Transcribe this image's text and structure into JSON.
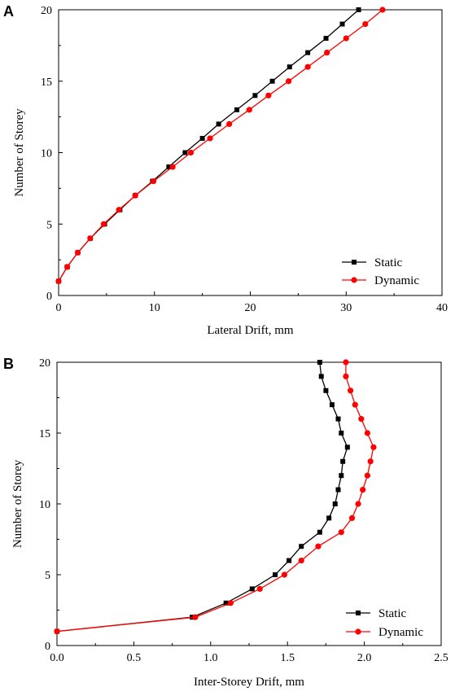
{
  "chart_data": [
    {
      "panel": "A",
      "type": "line",
      "title": "",
      "xlabel": "Lateral Drift, mm",
      "ylabel": "Number of Storey",
      "xlim": [
        0,
        40
      ],
      "ylim": [
        0,
        20
      ],
      "xticks": [
        0,
        10,
        20,
        30,
        40
      ],
      "yticks": [
        0,
        5,
        10,
        15,
        20
      ],
      "legend_position": "bottom-right",
      "grid": false,
      "series": [
        {
          "name": "Static",
          "color": "#000000",
          "marker": "square",
          "x": [
            0,
            0.9,
            2.0,
            3.3,
            4.8,
            6.4,
            8.0,
            9.8,
            11.5,
            13.2,
            15.0,
            16.7,
            18.6,
            20.5,
            22.3,
            24.1,
            26.0,
            27.9,
            29.6,
            31.3
          ],
          "y": [
            1,
            2,
            3,
            4,
            5,
            6,
            7,
            8,
            9,
            10,
            11,
            12,
            13,
            14,
            15,
            16,
            17,
            18,
            19,
            20
          ]
        },
        {
          "name": "Dynamic",
          "color": "#ff0000",
          "marker": "circle",
          "x": [
            0,
            0.9,
            2.0,
            3.3,
            4.7,
            6.3,
            8.0,
            9.9,
            11.9,
            13.8,
            15.8,
            17.8,
            19.9,
            21.9,
            24.0,
            26.0,
            28.0,
            30.0,
            32.0,
            33.8
          ],
          "y": [
            1,
            2,
            3,
            4,
            5,
            6,
            7,
            8,
            9,
            10,
            11,
            12,
            13,
            14,
            15,
            16,
            17,
            18,
            19,
            20
          ]
        }
      ]
    },
    {
      "panel": "B",
      "type": "line",
      "title": "",
      "xlabel": "Inter-Storey Drift, mm",
      "ylabel": "Number of Storey",
      "xlim": [
        0,
        2.5
      ],
      "ylim": [
        0,
        20
      ],
      "xticks": [
        0.0,
        0.5,
        1.0,
        1.5,
        2.0,
        2.5
      ],
      "xtick_labels": [
        "0.0",
        "0.5",
        "1.0",
        "1.5",
        "2.0",
        "2.5"
      ],
      "yticks": [
        0,
        5,
        10,
        15,
        20
      ],
      "legend_position": "bottom-right",
      "grid": false,
      "series": [
        {
          "name": "Static",
          "color": "#000000",
          "marker": "square",
          "x": [
            0.0,
            0.88,
            1.1,
            1.27,
            1.42,
            1.51,
            1.59,
            1.71,
            1.77,
            1.81,
            1.83,
            1.85,
            1.86,
            1.89,
            1.85,
            1.83,
            1.79,
            1.75,
            1.72,
            1.71
          ],
          "y": [
            1,
            2,
            3,
            4,
            5,
            6,
            7,
            8,
            9,
            10,
            11,
            12,
            13,
            14,
            15,
            16,
            17,
            18,
            19,
            20
          ]
        },
        {
          "name": "Dynamic",
          "color": "#ff0000",
          "marker": "circle",
          "x": [
            0.0,
            0.9,
            1.13,
            1.32,
            1.48,
            1.59,
            1.7,
            1.85,
            1.92,
            1.96,
            1.99,
            2.02,
            2.04,
            2.06,
            2.02,
            1.98,
            1.94,
            1.91,
            1.88,
            1.88
          ],
          "y": [
            1,
            2,
            3,
            4,
            5,
            6,
            7,
            8,
            9,
            10,
            11,
            12,
            13,
            14,
            15,
            16,
            17,
            18,
            19,
            20
          ]
        }
      ]
    }
  ]
}
